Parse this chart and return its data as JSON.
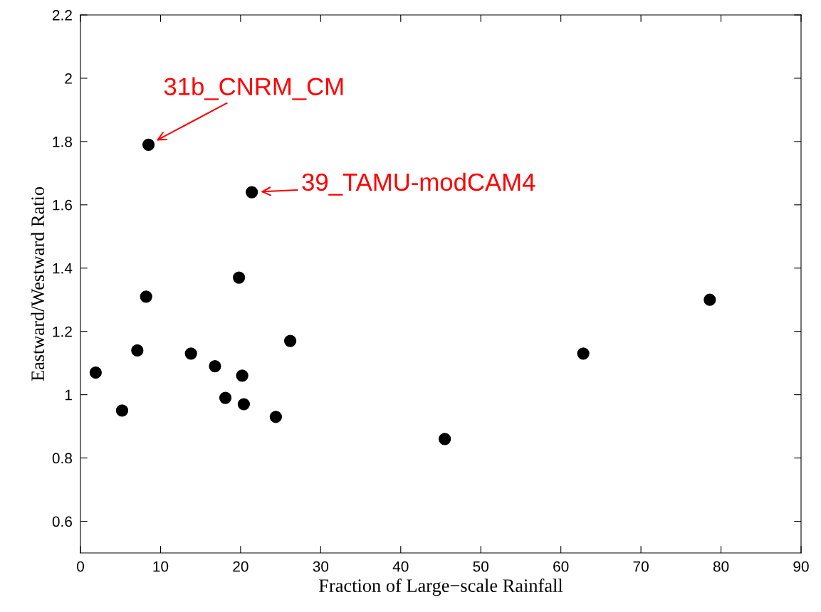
{
  "chart_data": {
    "type": "scatter",
    "xlabel": "Fraction of Large−scale Rainfall",
    "ylabel": "Eastward/Westward Ratio",
    "x": [
      8.5,
      21.4,
      19.8,
      8.2,
      78.6,
      26.2,
      7.1,
      13.8,
      62.8,
      16.8,
      1.9,
      20.2,
      18.1,
      20.4,
      5.2,
      24.4,
      45.5
    ],
    "series": [
      {
        "color": "#000000",
        "values": [
          1.79,
          1.64,
          1.37,
          1.31,
          1.3,
          1.17,
          1.14,
          1.13,
          1.13,
          1.09,
          1.07,
          1.06,
          0.99,
          0.97,
          0.95,
          0.93,
          0.86
        ]
      }
    ],
    "marker": "circle",
    "xlim": [
      0,
      90
    ],
    "xticks": [
      0,
      10,
      20,
      30,
      40,
      50,
      60,
      70,
      80,
      90
    ],
    "ylim": [
      0.5,
      2.2
    ],
    "yticks": [
      0.6,
      0.8,
      1,
      1.2,
      1.4,
      1.6,
      1.8,
      2,
      2.2
    ],
    "grid": false,
    "legend": false,
    "annotations": [
      {
        "text": "31b_CNRM_CM",
        "x": 8.5,
        "y": 1.79
      },
      {
        "text": "39_TAMU-modCAM4",
        "x": 21.4,
        "y": 1.64
      }
    ]
  }
}
